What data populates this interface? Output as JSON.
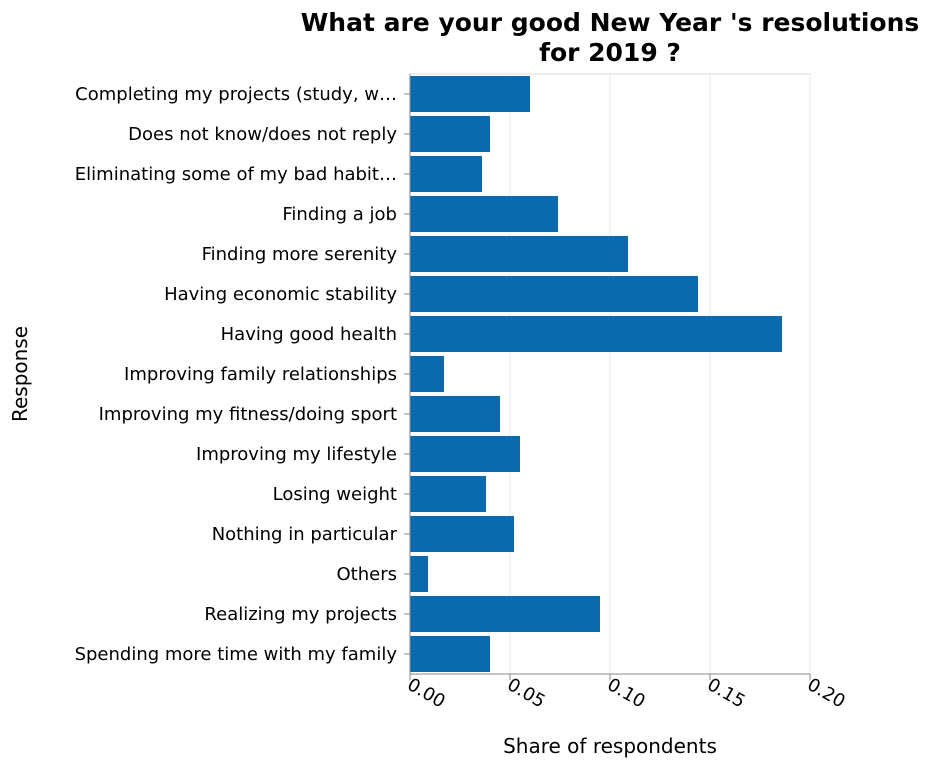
{
  "chart_data": {
    "type": "bar",
    "orientation": "horizontal",
    "title": [
      "What are your good New Year 's resolutions",
      "for 2019 ?"
    ],
    "xlabel": "Share of respondents",
    "ylabel": "Response",
    "xlim": [
      0,
      0.2
    ],
    "xticks": [
      "0.00",
      "0.05",
      "0.10",
      "0.15",
      "0.20"
    ],
    "tick_values": [
      0,
      0.05,
      0.1,
      0.15,
      0.2
    ],
    "grid": true,
    "bar_color": "#0b6aad",
    "categories": [
      "Completing my projects (study, w…",
      "Does not know/does not reply",
      "Eliminating some of my bad habit…",
      "Finding a job",
      "Finding more serenity",
      "Having economic stability",
      "Having good health",
      "Improving family relationships",
      "Improving my fitness/doing sport",
      "Improving my lifestyle",
      "Losing weight",
      "Nothing in particular",
      "Others",
      "Realizing my projects",
      "Spending more time with my family"
    ],
    "values": [
      0.06,
      0.04,
      0.036,
      0.074,
      0.109,
      0.144,
      0.186,
      0.017,
      0.045,
      0.055,
      0.038,
      0.052,
      0.009,
      0.095,
      0.04
    ]
  }
}
